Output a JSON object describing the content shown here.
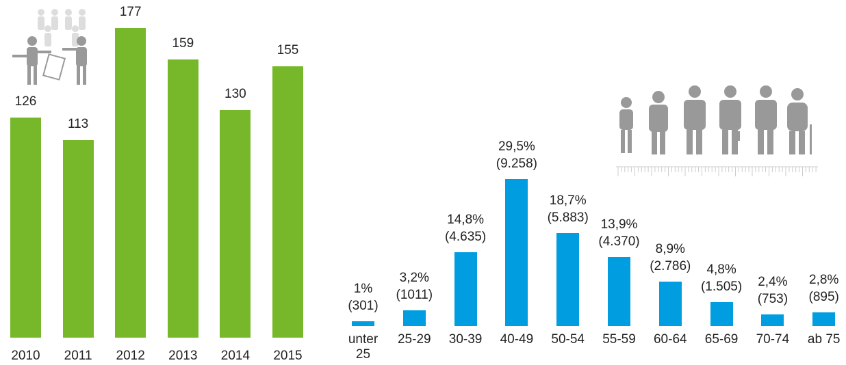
{
  "chart_data": [
    {
      "type": "bar",
      "categories": [
        "2010",
        "2011",
        "2012",
        "2013",
        "2014",
        "2015"
      ],
      "values": [
        126,
        113,
        177,
        159,
        130,
        155
      ],
      "color": "#76b82a",
      "ylim": [
        0,
        177
      ]
    },
    {
      "type": "bar",
      "categories": [
        "unter 25",
        "25-29",
        "30-39",
        "40-49",
        "50-54",
        "55-59",
        "60-64",
        "65-69",
        "70-74",
        "ab 75"
      ],
      "values": [
        1,
        3.2,
        14.8,
        29.5,
        18.7,
        13.9,
        8.9,
        4.8,
        2.4,
        2.8
      ],
      "value_labels": [
        "1%",
        "3,2%",
        "14,8%",
        "29,5%",
        "18,7%",
        "13,9%",
        "8,9%",
        "4,8%",
        "2,4%",
        "2,8%"
      ],
      "counts": [
        301,
        1011,
        4635,
        9258,
        5883,
        4370,
        2786,
        1505,
        753,
        895
      ],
      "count_labels": [
        "(301)",
        "(1011)",
        "(4.635)",
        "(9.258)",
        "(5.883)",
        "(4.370)",
        "(2.786)",
        "(1.505)",
        "(753)",
        "(895)"
      ],
      "color": "#009ee0",
      "ylim": [
        0,
        29.5
      ]
    }
  ]
}
